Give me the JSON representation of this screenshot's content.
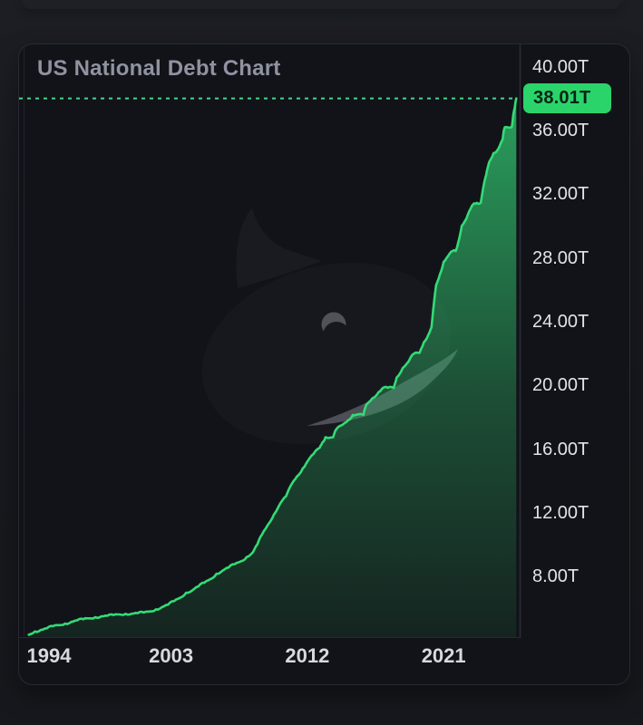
{
  "card": {
    "title": "US National Debt Chart"
  },
  "chart_data": {
    "type": "area",
    "title": "US National Debt Chart",
    "xlabel": "",
    "ylabel": "",
    "unit": "T",
    "legend": "none",
    "grid": "off",
    "last_value": 38.01,
    "last_value_label": "38.01T",
    "x_domain": [
      1993.2,
      2025.9
    ],
    "y_domain": [
      4.2,
      41.4
    ],
    "x_ticks": [
      {
        "label": "1994",
        "year": 1994
      },
      {
        "label": "2003",
        "year": 2003
      },
      {
        "label": "2012",
        "year": 2012
      },
      {
        "label": "2021",
        "year": 2021
      }
    ],
    "y_ticks": [
      {
        "label": "40.00T",
        "value": 40
      },
      {
        "label": "36.00T",
        "value": 36
      },
      {
        "label": "32.00T",
        "value": 32
      },
      {
        "label": "28.00T",
        "value": 28
      },
      {
        "label": "24.00T",
        "value": 24
      },
      {
        "label": "20.00T",
        "value": 20
      },
      {
        "label": "16.00T",
        "value": 16
      },
      {
        "label": "12.00T",
        "value": 12
      },
      {
        "label": "8.00T",
        "value": 8
      }
    ],
    "colors": {
      "line": "#34db76",
      "area_top": "#30be6c",
      "dotted": "#41d888",
      "badge_bg": "#2bd46b",
      "badge_text": "#0a2414",
      "axis": "#2b2e38",
      "tick_text": "#e2e3e6"
    },
    "series": [
      {
        "name": "US National Debt",
        "points": [
          [
            1993.6,
            4.35
          ],
          [
            1994.0,
            4.55
          ],
          [
            1994.4,
            4.65
          ],
          [
            1994.8,
            4.75
          ],
          [
            1995.2,
            4.88
          ],
          [
            1995.6,
            4.95
          ],
          [
            1996.0,
            5.05
          ],
          [
            1996.4,
            5.15
          ],
          [
            1996.8,
            5.25
          ],
          [
            1997.2,
            5.32
          ],
          [
            1997.6,
            5.38
          ],
          [
            1998.0,
            5.45
          ],
          [
            1998.4,
            5.5
          ],
          [
            1998.8,
            5.54
          ],
          [
            1999.2,
            5.58
          ],
          [
            1999.6,
            5.62
          ],
          [
            2000.0,
            5.66
          ],
          [
            2000.4,
            5.67
          ],
          [
            2000.8,
            5.7
          ],
          [
            2001.2,
            5.74
          ],
          [
            2001.6,
            5.81
          ],
          [
            2002.0,
            5.94
          ],
          [
            2002.4,
            6.08
          ],
          [
            2002.8,
            6.23
          ],
          [
            2003.2,
            6.46
          ],
          [
            2003.6,
            6.67
          ],
          [
            2004.0,
            6.99
          ],
          [
            2004.4,
            7.13
          ],
          [
            2004.8,
            7.38
          ],
          [
            2005.2,
            7.62
          ],
          [
            2005.6,
            7.84
          ],
          [
            2006.0,
            8.17
          ],
          [
            2006.4,
            8.37
          ],
          [
            2006.8,
            8.57
          ],
          [
            2007.2,
            8.78
          ],
          [
            2007.6,
            8.95
          ],
          [
            2008.0,
            9.23
          ],
          [
            2008.4,
            9.52
          ],
          [
            2008.7,
            10.02
          ],
          [
            2009.0,
            10.63
          ],
          [
            2009.4,
            11.26
          ],
          [
            2009.8,
            11.91
          ],
          [
            2010.2,
            12.58
          ],
          [
            2010.6,
            13.05
          ],
          [
            2011.0,
            13.86
          ],
          [
            2011.3,
            14.27
          ],
          [
            2011.7,
            14.79
          ],
          [
            2012.0,
            15.22
          ],
          [
            2012.4,
            15.69
          ],
          [
            2012.8,
            16.07
          ],
          [
            2013.0,
            16.43
          ],
          [
            2013.2,
            16.74
          ],
          [
            2013.7,
            16.74
          ],
          [
            2013.9,
            17.23
          ],
          [
            2014.3,
            17.51
          ],
          [
            2014.7,
            17.82
          ],
          [
            2015.0,
            18.14
          ],
          [
            2015.2,
            18.15
          ],
          [
            2015.7,
            18.15
          ],
          [
            2015.9,
            18.79
          ],
          [
            2016.3,
            19.19
          ],
          [
            2016.7,
            19.57
          ],
          [
            2017.0,
            19.85
          ],
          [
            2017.3,
            19.85
          ],
          [
            2017.7,
            19.84
          ],
          [
            2017.9,
            20.49
          ],
          [
            2018.3,
            21.09
          ],
          [
            2018.7,
            21.52
          ],
          [
            2019.0,
            21.97
          ],
          [
            2019.4,
            22.03
          ],
          [
            2019.7,
            22.72
          ],
          [
            2020.0,
            23.2
          ],
          [
            2020.2,
            23.65
          ],
          [
            2020.35,
            25.06
          ],
          [
            2020.5,
            26.27
          ],
          [
            2020.75,
            26.95
          ],
          [
            2021.0,
            27.75
          ],
          [
            2021.3,
            28.13
          ],
          [
            2021.6,
            28.43
          ],
          [
            2021.8,
            28.43
          ],
          [
            2021.95,
            28.91
          ],
          [
            2022.2,
            30.01
          ],
          [
            2022.5,
            30.45
          ],
          [
            2022.8,
            31.12
          ],
          [
            2023.0,
            31.42
          ],
          [
            2023.2,
            31.46
          ],
          [
            2023.45,
            31.46
          ],
          [
            2023.6,
            32.33
          ],
          [
            2023.8,
            33.17
          ],
          [
            2024.0,
            34.0
          ],
          [
            2024.3,
            34.58
          ],
          [
            2024.6,
            34.83
          ],
          [
            2024.9,
            35.46
          ],
          [
            2025.0,
            36.1
          ],
          [
            2025.1,
            36.22
          ],
          [
            2025.5,
            36.22
          ],
          [
            2025.6,
            37.0
          ],
          [
            2025.7,
            37.45
          ],
          [
            2025.8,
            38.01
          ]
        ]
      }
    ]
  }
}
